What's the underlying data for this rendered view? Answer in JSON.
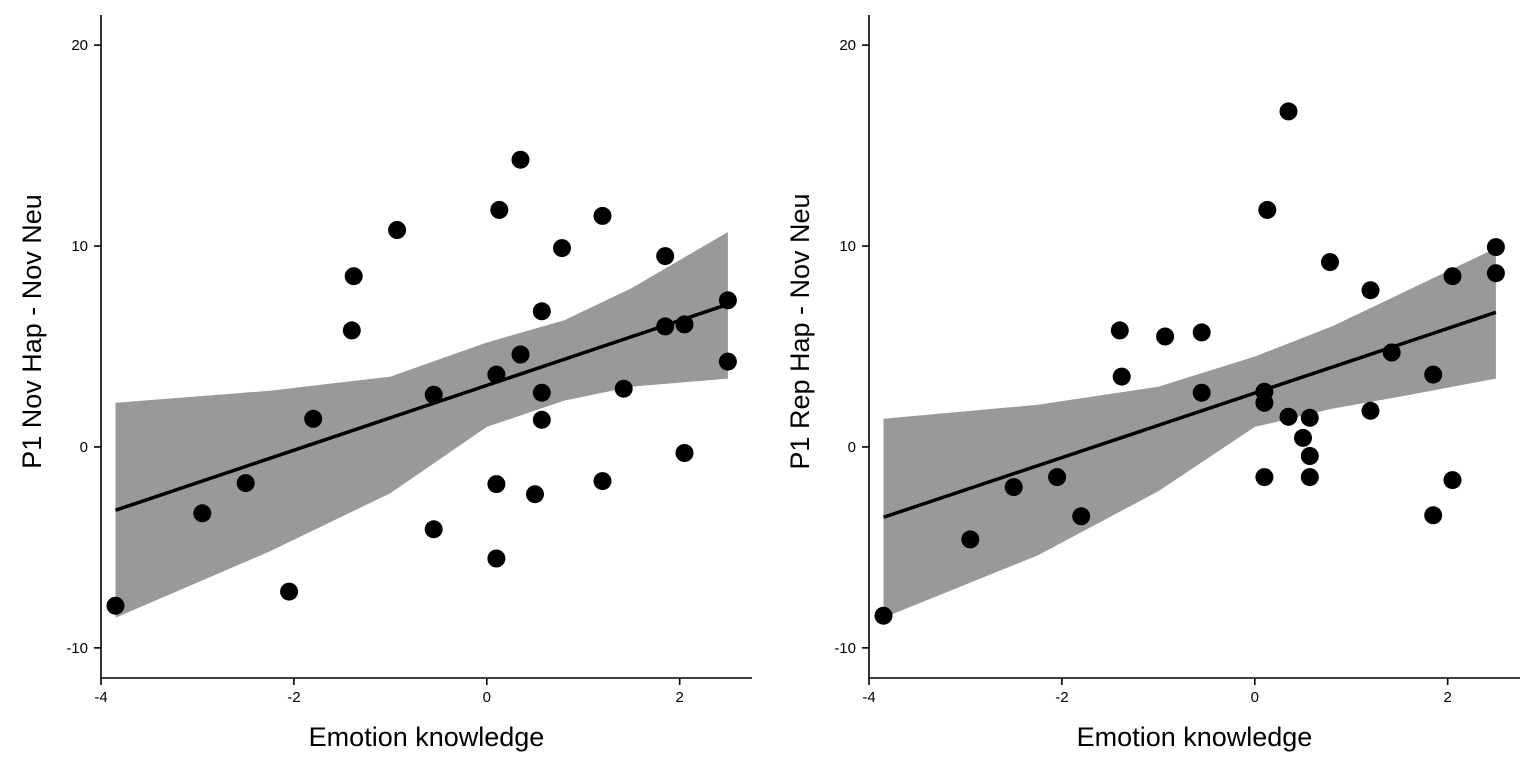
{
  "colors": {
    "point": "#000000",
    "ribbon": "#999999",
    "line": "#000000",
    "axis": "#000000",
    "background": "#ffffff"
  },
  "chart_data": [
    {
      "type": "scatter",
      "title": "",
      "xlabel": "Emotion knowledge",
      "ylabel": "P1 Nov Hap - Nov Neu",
      "xlim": [
        -4.0,
        2.75
      ],
      "ylim": [
        -11.5,
        21.5
      ],
      "xticks": [
        -4,
        -2,
        0,
        2
      ],
      "yticks": [
        -10,
        0,
        10,
        20
      ],
      "grid": false,
      "legend": "none",
      "points": [
        {
          "x": -3.85,
          "y": -7.9
        },
        {
          "x": -2.95,
          "y": -3.3
        },
        {
          "x": -2.5,
          "y": -1.8
        },
        {
          "x": -2.05,
          "y": -7.2
        },
        {
          "x": -1.8,
          "y": 1.4
        },
        {
          "x": -1.4,
          "y": 5.8
        },
        {
          "x": -1.38,
          "y": 8.5
        },
        {
          "x": -0.93,
          "y": 10.8
        },
        {
          "x": -0.55,
          "y": 2.6
        },
        {
          "x": -0.55,
          "y": -4.1
        },
        {
          "x": 0.1,
          "y": 3.6
        },
        {
          "x": 0.1,
          "y": -1.85
        },
        {
          "x": 0.1,
          "y": -5.55
        },
        {
          "x": 0.13,
          "y": 11.8
        },
        {
          "x": 0.35,
          "y": 14.3
        },
        {
          "x": 0.35,
          "y": 4.6
        },
        {
          "x": 0.5,
          "y": -2.35
        },
        {
          "x": 0.57,
          "y": 6.75
        },
        {
          "x": 0.57,
          "y": 2.7
        },
        {
          "x": 0.57,
          "y": 1.35
        },
        {
          "x": 0.78,
          "y": 9.9
        },
        {
          "x": 1.2,
          "y": 11.5
        },
        {
          "x": 1.2,
          "y": -1.7
        },
        {
          "x": 1.42,
          "y": 2.9
        },
        {
          "x": 1.85,
          "y": 9.5
        },
        {
          "x": 1.85,
          "y": 6.0
        },
        {
          "x": 2.05,
          "y": 6.1
        },
        {
          "x": 2.05,
          "y": -0.3
        },
        {
          "x": 2.5,
          "y": 7.3
        },
        {
          "x": 2.5,
          "y": 4.25
        }
      ],
      "fit": {
        "x": [
          -3.85,
          2.5
        ],
        "y": [
          -3.15,
          7.1
        ]
      },
      "band": {
        "x": [
          -3.85,
          -2.25,
          -1.0,
          0.0,
          0.8,
          1.5,
          2.5
        ],
        "lower": [
          -8.5,
          -5.2,
          -2.3,
          1.0,
          2.3,
          3.0,
          3.4
        ],
        "upper": [
          2.2,
          2.8,
          3.5,
          5.2,
          6.3,
          7.9,
          10.7
        ]
      }
    },
    {
      "type": "scatter",
      "title": "",
      "xlabel": "Emotion knowledge",
      "ylabel": "P1 Rep Hap - Nov Neu",
      "xlim": [
        -4.0,
        2.75
      ],
      "ylim": [
        -11.5,
        21.5
      ],
      "xticks": [
        -4,
        -2,
        0,
        2
      ],
      "yticks": [
        -10,
        0,
        10,
        20
      ],
      "grid": false,
      "legend": "none",
      "points": [
        {
          "x": -3.85,
          "y": -8.4
        },
        {
          "x": -2.95,
          "y": -4.6
        },
        {
          "x": -2.5,
          "y": -2.0
        },
        {
          "x": -2.05,
          "y": -1.5
        },
        {
          "x": -1.8,
          "y": -3.45
        },
        {
          "x": -1.4,
          "y": 5.8
        },
        {
          "x": -1.38,
          "y": 3.5
        },
        {
          "x": -0.93,
          "y": 5.5
        },
        {
          "x": -0.55,
          "y": 5.7
        },
        {
          "x": -0.55,
          "y": 2.7
        },
        {
          "x": 0.1,
          "y": 2.75
        },
        {
          "x": 0.1,
          "y": 2.2
        },
        {
          "x": 0.1,
          "y": -1.5
        },
        {
          "x": 0.13,
          "y": 11.8
        },
        {
          "x": 0.35,
          "y": 16.7
        },
        {
          "x": 0.35,
          "y": 1.5
        },
        {
          "x": 0.5,
          "y": 0.45
        },
        {
          "x": 0.57,
          "y": 1.45
        },
        {
          "x": 0.57,
          "y": -0.45
        },
        {
          "x": 0.57,
          "y": -1.5
        },
        {
          "x": 0.78,
          "y": 9.2
        },
        {
          "x": 1.2,
          "y": 7.8
        },
        {
          "x": 1.2,
          "y": 1.8
        },
        {
          "x": 1.42,
          "y": 4.7
        },
        {
          "x": 1.85,
          "y": 3.6
        },
        {
          "x": 1.85,
          "y": -3.4
        },
        {
          "x": 2.05,
          "y": 8.5
        },
        {
          "x": 2.05,
          "y": -1.65
        },
        {
          "x": 2.5,
          "y": 9.95
        },
        {
          "x": 2.5,
          "y": 8.65
        }
      ],
      "fit": {
        "x": [
          -3.85,
          2.5
        ],
        "y": [
          -3.5,
          6.7
        ]
      },
      "band": {
        "x": [
          -3.85,
          -2.25,
          -1.0,
          0.0,
          0.8,
          1.5,
          2.5
        ],
        "lower": [
          -8.5,
          -5.4,
          -2.2,
          1.0,
          1.9,
          2.5,
          3.4
        ],
        "upper": [
          1.4,
          2.1,
          3.0,
          4.5,
          6.0,
          7.6,
          9.9
        ]
      }
    }
  ]
}
